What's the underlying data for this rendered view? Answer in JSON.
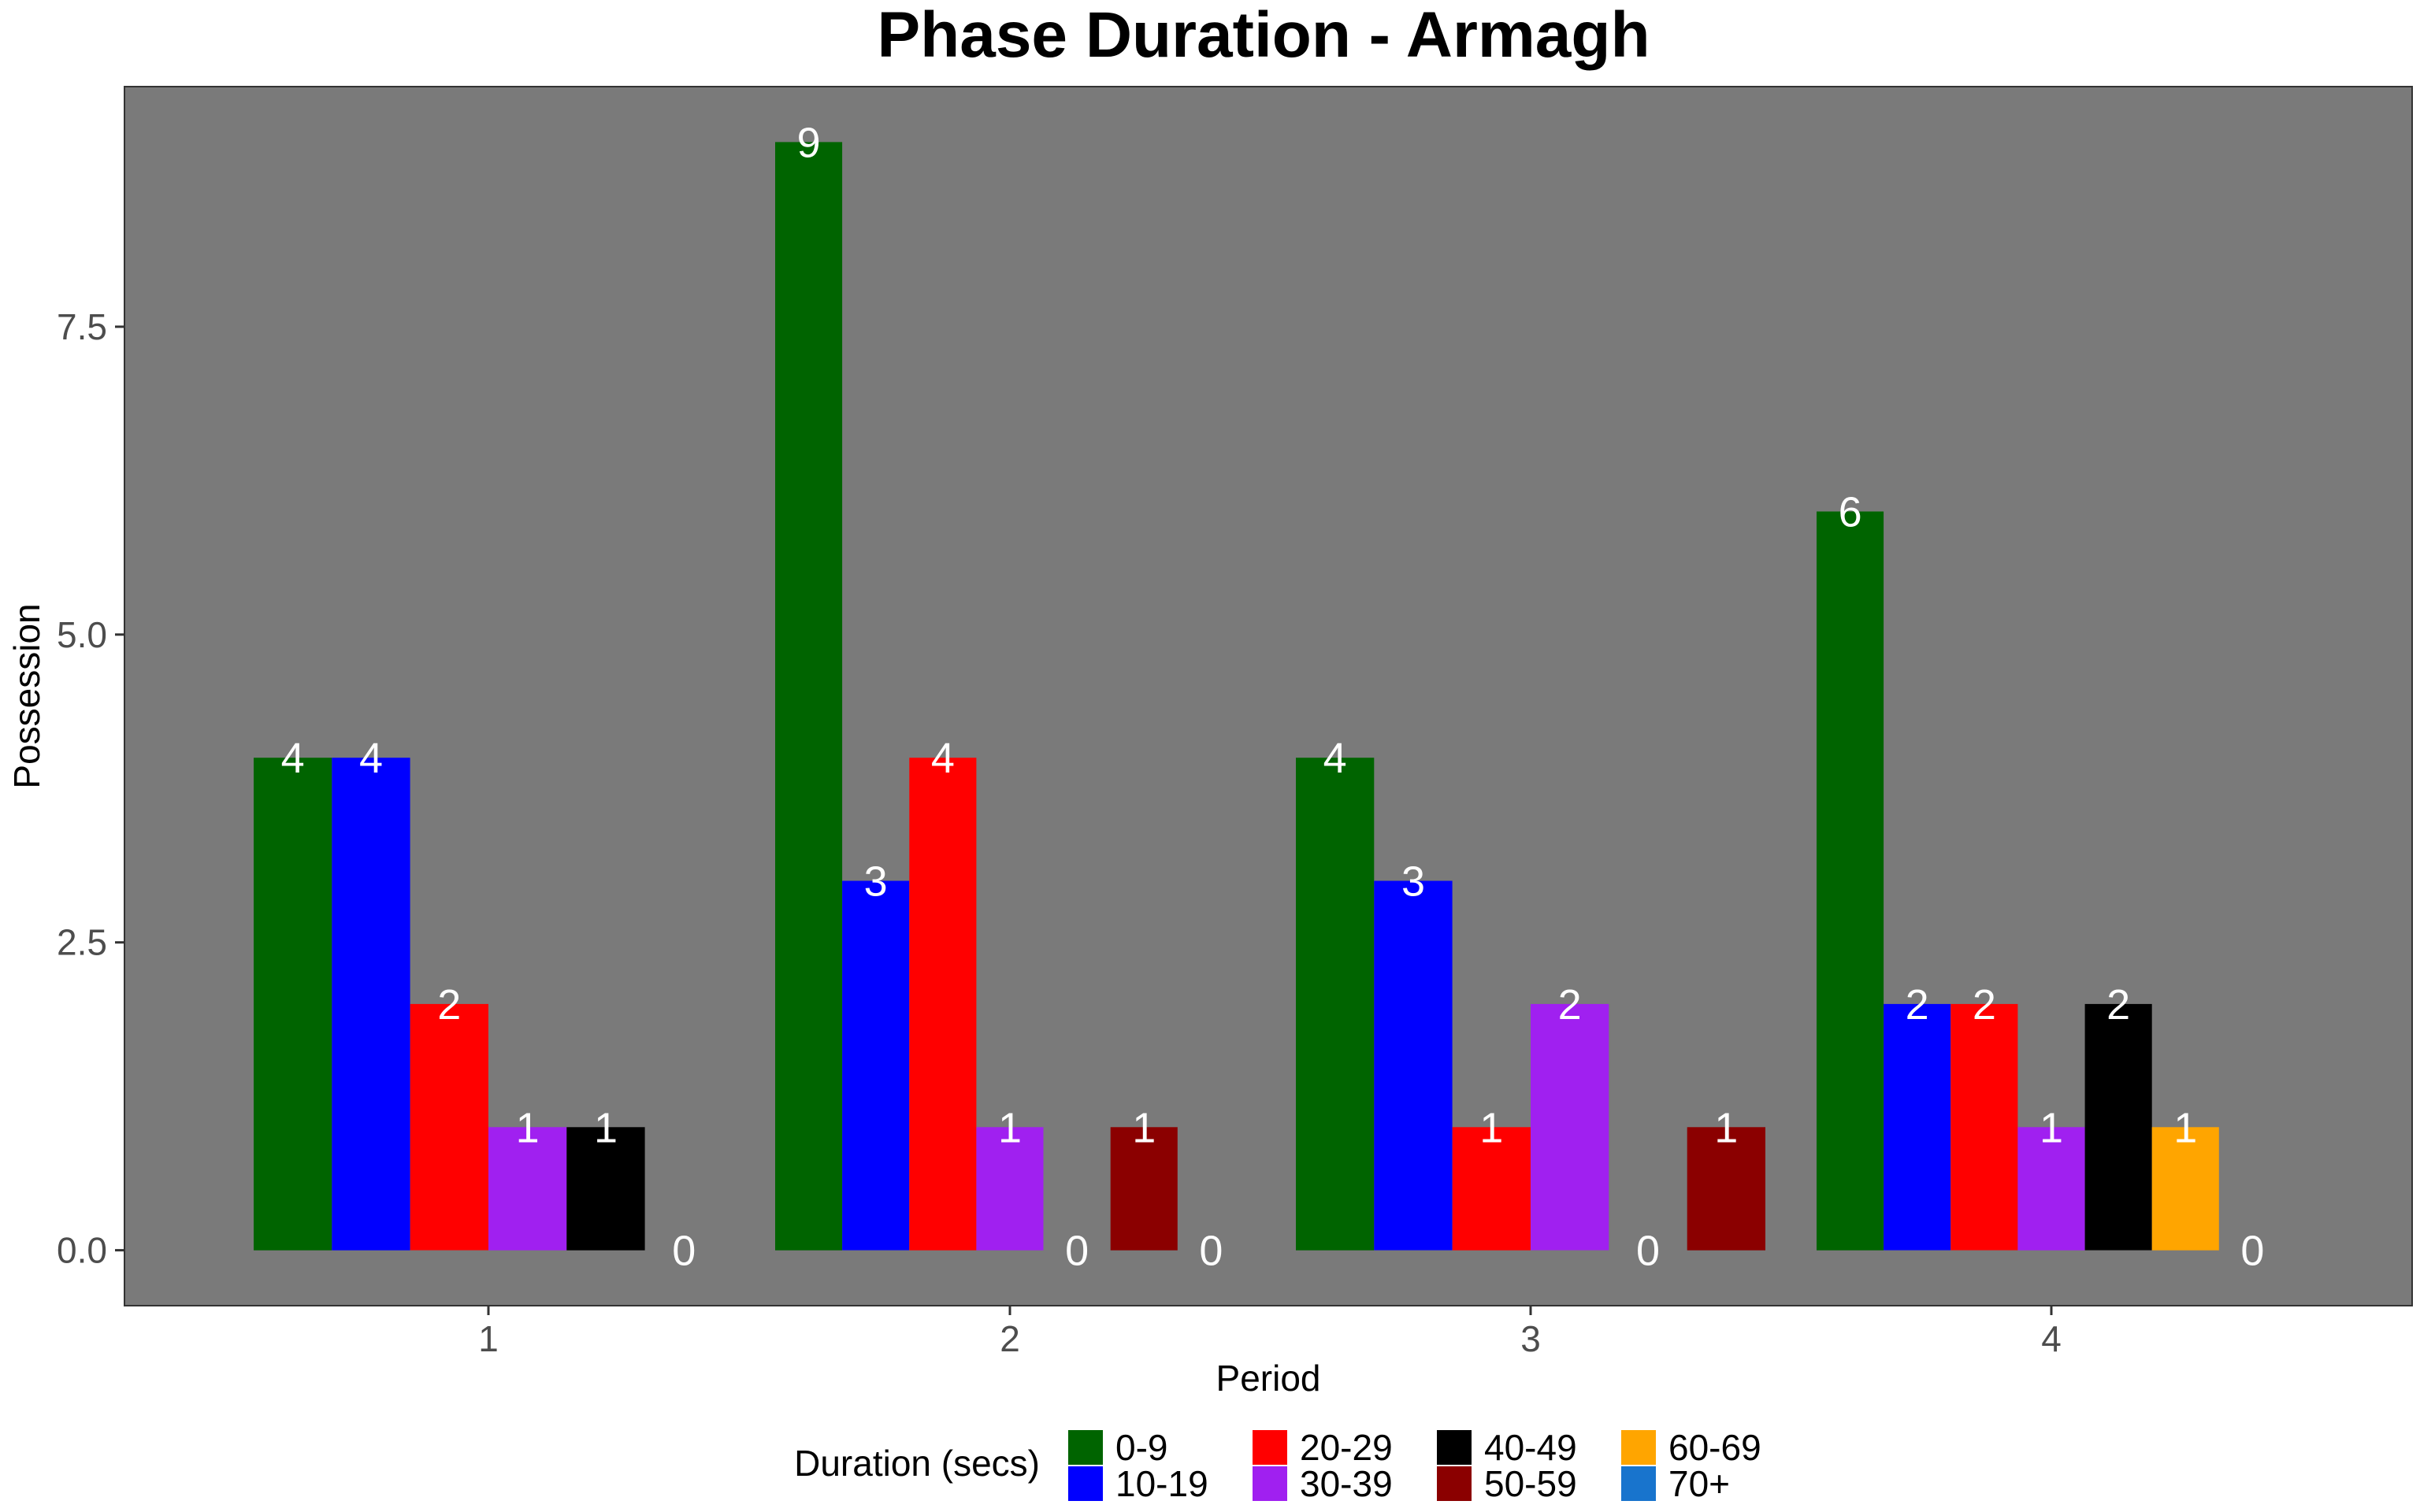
{
  "chart_data": {
    "type": "bar",
    "title": "Phase Duration - Armagh",
    "xlabel": "Period",
    "ylabel": "Possession",
    "categories": [
      "1",
      "2",
      "3",
      "4"
    ],
    "ylim": [
      -0.45,
      9.45
    ],
    "yticks": [
      0.0,
      2.5,
      5.0,
      7.5
    ],
    "ytick_labels": [
      "0.0",
      "2.5",
      "5.0",
      "7.5"
    ],
    "grid": false,
    "panel_background": "#7a7a7a",
    "legend": {
      "title": "Duration (secs)",
      "position": "bottom"
    },
    "groups": [
      {
        "category": "1",
        "bars": [
          {
            "series": "0-9",
            "value": 4
          },
          {
            "series": "10-19",
            "value": 4
          },
          {
            "series": "20-29",
            "value": 2
          },
          {
            "series": "30-39",
            "value": 1
          },
          {
            "series": "40-49",
            "value": 1
          },
          {
            "series": "70+",
            "value": 0
          }
        ]
      },
      {
        "category": "2",
        "bars": [
          {
            "series": "0-9",
            "value": 9
          },
          {
            "series": "10-19",
            "value": 3
          },
          {
            "series": "20-29",
            "value": 4
          },
          {
            "series": "30-39",
            "value": 1
          },
          {
            "series": "40-49",
            "value": 0
          },
          {
            "series": "50-59",
            "value": 1
          },
          {
            "series": "70+",
            "value": 0
          }
        ]
      },
      {
        "category": "3",
        "bars": [
          {
            "series": "0-9",
            "value": 4
          },
          {
            "series": "10-19",
            "value": 3
          },
          {
            "series": "20-29",
            "value": 1
          },
          {
            "series": "30-39",
            "value": 2
          },
          {
            "series": "40-49",
            "value": 0
          },
          {
            "series": "50-59",
            "value": 1
          }
        ]
      },
      {
        "category": "4",
        "bars": [
          {
            "series": "0-9",
            "value": 6
          },
          {
            "series": "10-19",
            "value": 2
          },
          {
            "series": "20-29",
            "value": 2
          },
          {
            "series": "30-39",
            "value": 1
          },
          {
            "series": "40-49",
            "value": 2
          },
          {
            "series": "60-69",
            "value": 1
          },
          {
            "series": "70+",
            "value": 0
          }
        ]
      }
    ],
    "series": [
      {
        "name": "0-9",
        "color": "#006400"
      },
      {
        "name": "10-19",
        "color": "#0000ff"
      },
      {
        "name": "20-29",
        "color": "#ff0000"
      },
      {
        "name": "30-39",
        "color": "#a020f0"
      },
      {
        "name": "40-49",
        "color": "#000000"
      },
      {
        "name": "50-59",
        "color": "#8b0000"
      },
      {
        "name": "60-69",
        "color": "#ffa500"
      },
      {
        "name": "70+",
        "color": "#1874cd"
      }
    ]
  }
}
